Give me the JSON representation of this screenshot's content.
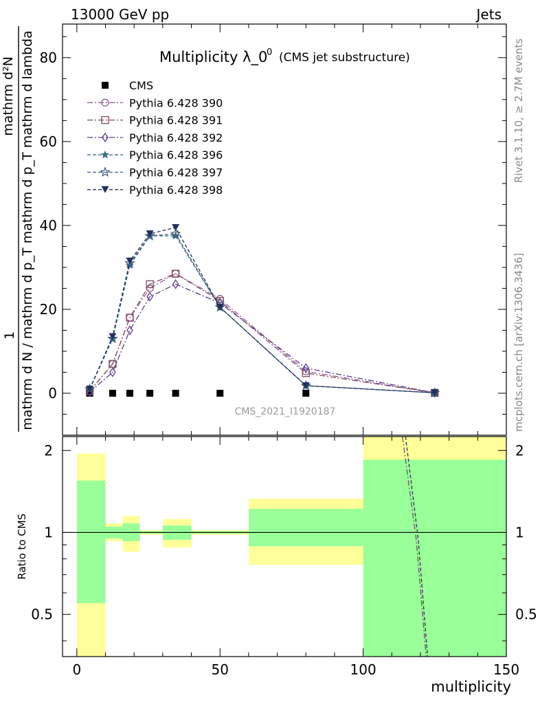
{
  "header": {
    "left": "13000 GeV pp",
    "right": "Jets"
  },
  "side_labels": {
    "rivet": "Rivet 3.1.10, ≥ 2.7M events",
    "mcplots": "mcplots.cern.ch [arXiv:1306.3436]"
  },
  "watermark": "CMS_2021_I1920187",
  "chart_data": [
    {
      "type": "line",
      "title": "Multiplicity λ_0",
      "title_sup": "0",
      "subtitle": "(CMS jet substructure)",
      "ylabel_numerator": "mathrm d²N",
      "ylabel_denominator": "mathrm d N / mathrm d p_T mathrm d p_T mathrm d lambda",
      "ylabel_prefix": "1",
      "xlim": [
        -5,
        150
      ],
      "ylim": [
        -10,
        88
      ],
      "yticks": [
        0,
        20,
        40,
        60,
        80
      ],
      "legend_position": "top-left",
      "x": [
        4.5,
        12.5,
        18.5,
        25.5,
        34.5,
        50,
        80,
        125
      ],
      "series": [
        {
          "name": "CMS",
          "marker": "square",
          "color": "#000000",
          "values": [
            0,
            0,
            0,
            0,
            0,
            0,
            0,
            0
          ],
          "dash": "none"
        },
        {
          "name": "Pythia 6.428 390",
          "marker": "circle",
          "color": "#8e5f8f",
          "dash": "8,3,2,3",
          "values": [
            0.5,
            7,
            18,
            25,
            28.5,
            22.5,
            5.2,
            0.1
          ]
        },
        {
          "name": "Pythia 6.428 391",
          "marker": "square-open",
          "color": "#7e4a5e",
          "dash": "8,3,2,3",
          "values": [
            0.5,
            7,
            18,
            26,
            28.5,
            22,
            4.8,
            0.1
          ]
        },
        {
          "name": "Pythia 6.428 392",
          "marker": "diamond",
          "color": "#5a3a8e",
          "dash": "8,3,2,3",
          "values": [
            0.3,
            5,
            15,
            23,
            26,
            21.5,
            6,
            0.1
          ]
        },
        {
          "name": "Pythia 6.428 396",
          "marker": "star-filled",
          "color": "#3e6e80",
          "dash": "5,3",
          "values": [
            1,
            13,
            30.5,
            37.5,
            37.5,
            20.5,
            1.8,
            0.1
          ]
        },
        {
          "name": "Pythia 6.428 397",
          "marker": "star-open",
          "color": "#3c5e80",
          "dash": "5,3",
          "values": [
            1,
            13,
            31,
            37.5,
            38,
            20.5,
            1.8,
            0.1
          ]
        },
        {
          "name": "Pythia 6.428 398",
          "marker": "triangle-down",
          "color": "#23305e",
          "dash": "5,3",
          "values": [
            1,
            13.5,
            31.5,
            38,
            39.5,
            20.5,
            1.8,
            0.1
          ]
        }
      ]
    },
    {
      "type": "area",
      "ylabel": "Ratio to CMS",
      "xlabel": "multiplicity",
      "xlim": [
        -5,
        150
      ],
      "ylim": [
        0.35,
        2.25
      ],
      "ytick_labels": [
        "0.5",
        "1",
        "2"
      ],
      "xticks": [
        0,
        50,
        100,
        150
      ],
      "bins": [
        {
          "lo": 0,
          "hi": 10,
          "yellow": [
            0.35,
            1.95
          ],
          "green": [
            0.55,
            1.55
          ]
        },
        {
          "lo": 10,
          "hi": 16,
          "yellow": [
            0.93,
            1.08
          ],
          "green": [
            0.95,
            1.05
          ]
        },
        {
          "lo": 16,
          "hi": 22,
          "yellow": [
            0.85,
            1.15
          ],
          "green": [
            0.93,
            1.08
          ]
        },
        {
          "lo": 22,
          "hi": 30,
          "yellow": [
            0.98,
            1.02
          ],
          "green": [
            0.99,
            1.01
          ]
        },
        {
          "lo": 30,
          "hi": 40,
          "yellow": [
            0.88,
            1.12
          ],
          "green": [
            0.94,
            1.06
          ]
        },
        {
          "lo": 40,
          "hi": 60,
          "yellow": [
            0.98,
            1.02
          ],
          "green": [
            0.99,
            1.01
          ]
        },
        {
          "lo": 60,
          "hi": 100,
          "yellow": [
            0.76,
            1.33
          ],
          "green": [
            0.89,
            1.22
          ]
        },
        {
          "lo": 100,
          "hi": 150,
          "yellow": [
            0.35,
            2.25
          ],
          "green": [
            0.35,
            1.85
          ]
        }
      ],
      "reference_line": 1,
      "ratio_curves": [
        {
          "color": "#7e4a5e",
          "dash": "8,3,2,3",
          "points": [
            [
              113.7,
              2.25
            ],
            [
              118.5,
              0.95
            ],
            [
              122,
              0.35
            ]
          ]
        },
        {
          "color": "#23305e",
          "dash": "5,3",
          "points": [
            [
              114.8,
              2.25
            ],
            [
              119.2,
              0.95
            ],
            [
              122.5,
              0.35
            ]
          ]
        }
      ]
    }
  ]
}
